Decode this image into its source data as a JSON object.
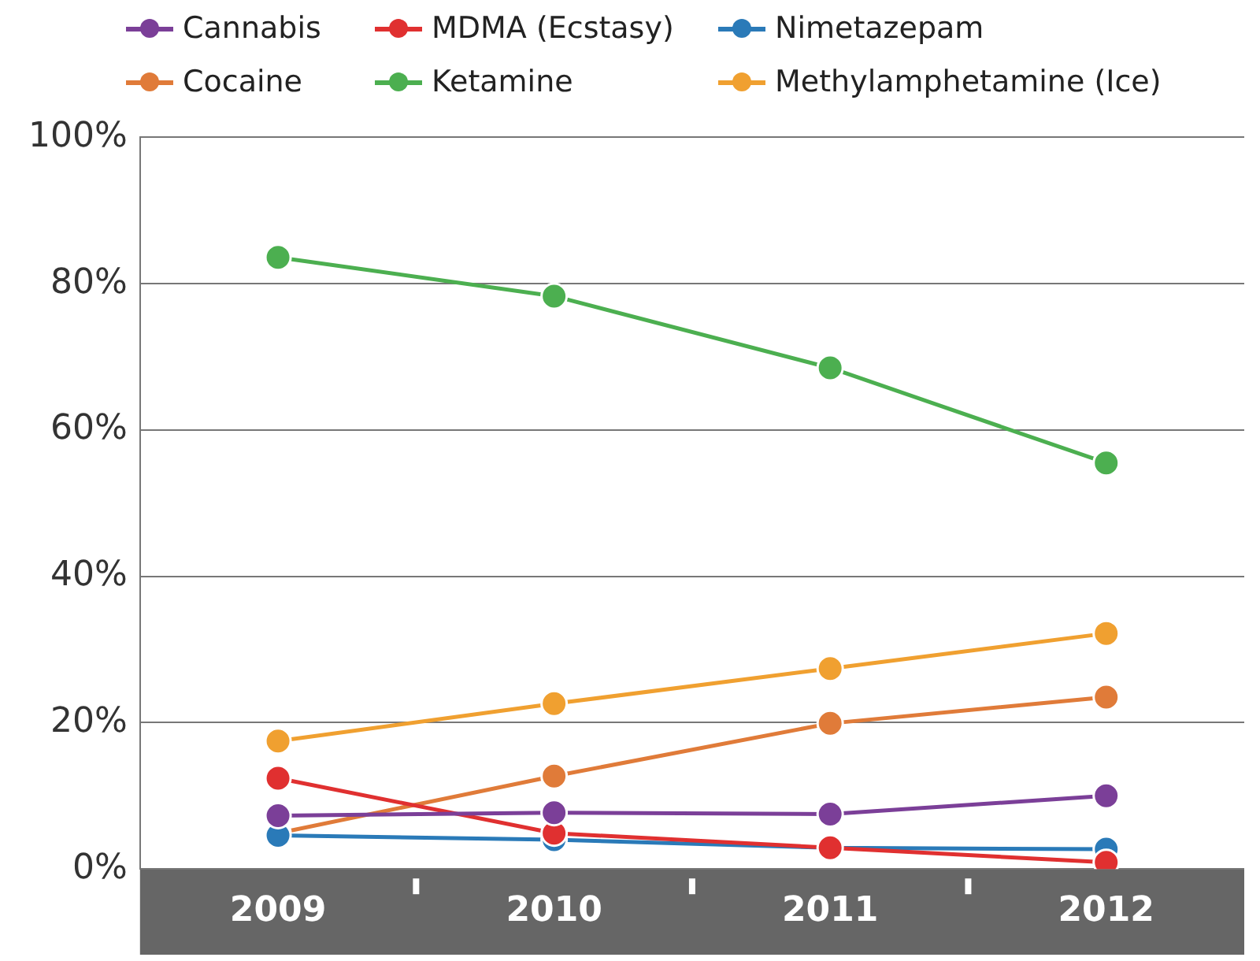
{
  "chart_data": {
    "type": "line",
    "categories": [
      "2009",
      "2010",
      "2011",
      "2012"
    ],
    "series": [
      {
        "name": "Cannabis",
        "color": "#7b3f98",
        "values": [
          7.3,
          7.7,
          7.5,
          10
        ]
      },
      {
        "name": "MDMA (Ecstasy)",
        "color": "#e03030",
        "values": [
          12.4,
          4.9,
          2.9,
          0.9
        ]
      },
      {
        "name": "Nimetazepam",
        "color": "#2a7ab8",
        "values": [
          4.6,
          4.0,
          2.9,
          2.7
        ]
      },
      {
        "name": "Cocaine",
        "color": "#e07b39",
        "values": [
          4.9,
          12.7,
          19.9,
          23.5
        ]
      },
      {
        "name": "Ketamine",
        "color": "#4caf50",
        "values": [
          83.6,
          78.3,
          68.5,
          55.5
        ]
      },
      {
        "name": "Methylamphetamine (Ice)",
        "color": "#f0a030",
        "values": [
          17.5,
          22.6,
          27.4,
          32.2
        ]
      }
    ],
    "ylim": [
      0,
      100
    ],
    "yticks": [
      {
        "value": 0,
        "label": "0%"
      },
      {
        "value": 20,
        "label": "20%"
      },
      {
        "value": 40,
        "label": "40%"
      },
      {
        "value": 60,
        "label": "60%"
      },
      {
        "value": 80,
        "label": "80%"
      },
      {
        "value": 100,
        "label": "100%"
      }
    ],
    "grid": "y",
    "legend": "top",
    "marker": "circle",
    "line_style": "solid"
  }
}
